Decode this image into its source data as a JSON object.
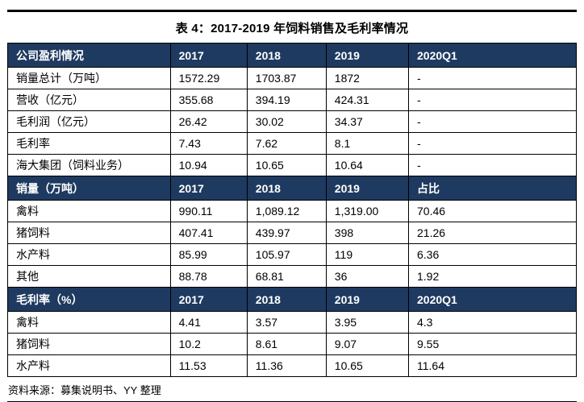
{
  "title": "表 4：2017-2019 年饲料销售及毛利率情况",
  "source_note": "资料来源：募集说明书、YY 整理",
  "colors": {
    "header_bg": "#1f3a60",
    "header_text": "#ffffff",
    "border": "#000000",
    "body_text": "#000000",
    "background": "#ffffff"
  },
  "table": {
    "column_widths_pct": [
      28.6,
      13.5,
      13.9,
      14.5,
      29.5
    ],
    "sections": [
      {
        "header": [
          "公司盈利情况",
          "2017",
          "2018",
          "2019",
          "2020Q1"
        ],
        "rows": [
          [
            "销量总计（万吨）",
            "1572.29",
            "1703.87",
            "1872",
            "-"
          ],
          [
            "营收（亿元）",
            "355.68",
            "394.19",
            "424.31",
            "-"
          ],
          [
            "毛利润（亿元）",
            "26.42",
            "30.02",
            "34.37",
            "-"
          ],
          [
            "毛利率",
            "7.43",
            "7.62",
            "8.1",
            "-"
          ],
          [
            "海大集团（饲料业务）",
            "10.94",
            "10.65",
            "10.64",
            "-"
          ]
        ]
      },
      {
        "header": [
          "销量（万吨）",
          "2017",
          "2018",
          "2019",
          "占比"
        ],
        "rows": [
          [
            "禽料",
            "990.11",
            "1,089.12",
            "1,319.00",
            "70.46"
          ],
          [
            "猪饲料",
            "407.41",
            "439.97",
            "398",
            "21.26"
          ],
          [
            "水产料",
            "85.99",
            "105.97",
            "119",
            "6.36"
          ],
          [
            "其他",
            "88.78",
            "68.81",
            "36",
            "1.92"
          ]
        ]
      },
      {
        "header": [
          "毛利率（%）",
          "2017",
          "2018",
          "2019",
          "2020Q1"
        ],
        "rows": [
          [
            "禽料",
            "4.41",
            "3.57",
            "3.95",
            "4.3"
          ],
          [
            "猪饲料",
            "10.2",
            "8.61",
            "9.07",
            "9.55"
          ],
          [
            "水产料",
            "11.53",
            "11.36",
            "10.65",
            "11.64"
          ]
        ]
      }
    ]
  }
}
